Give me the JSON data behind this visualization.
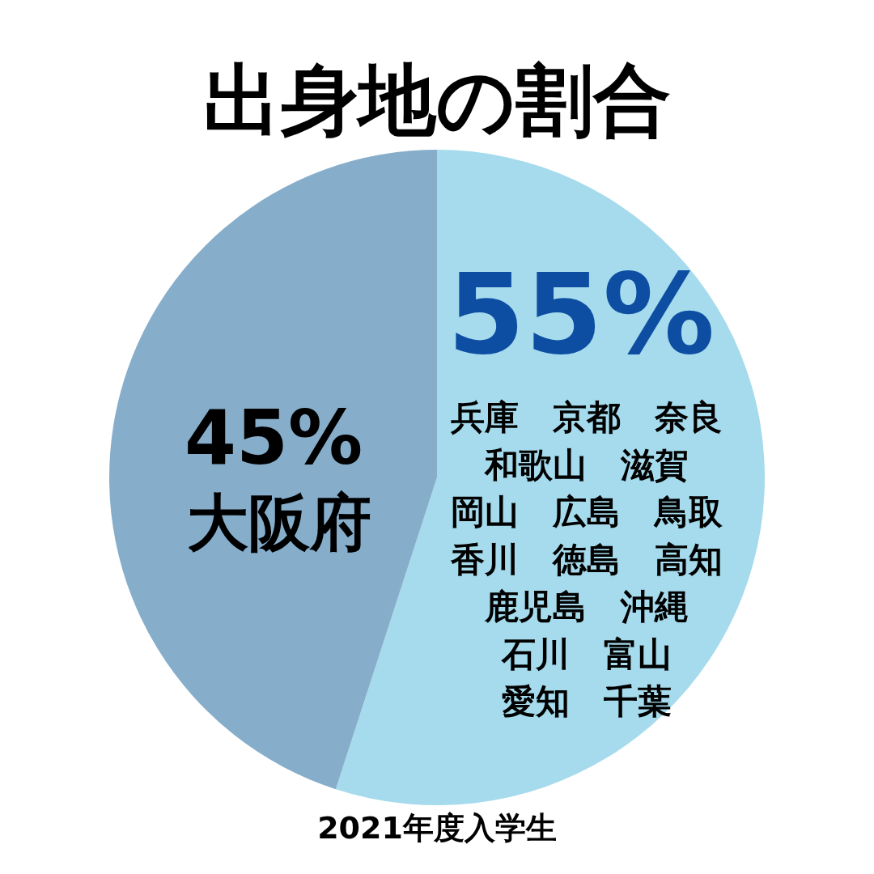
{
  "chart_data": {
    "type": "pie",
    "title": "出身地の割合",
    "categories": [
      "兵庫　京都　奈良和歌山　滋賀岡山　広島　鳥取香川　徳島　高知鹿児島　沖縄石川　富山愛知　千葉",
      "大阪府"
    ],
    "values": [
      55,
      45
    ],
    "colors": [
      "#a5dbec",
      "#86aecb"
    ],
    "value_labels": [
      "55%",
      "45%"
    ],
    "annotations": [
      "2021年度入学生"
    ],
    "legend": false
  }
}
